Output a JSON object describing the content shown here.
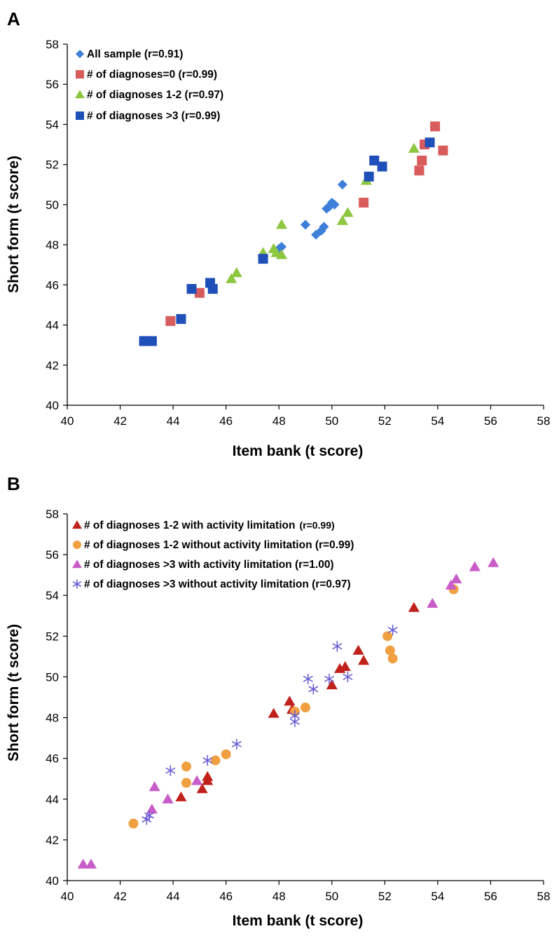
{
  "chart_data": [
    {
      "type": "scatter",
      "panel": "A",
      "xlabel": "Item bank (t score)",
      "ylabel": "Short form (t score)",
      "xlim": [
        40,
        58
      ],
      "ylim": [
        40,
        58
      ],
      "xticks": [
        40,
        42,
        44,
        46,
        48,
        50,
        52,
        54,
        56,
        58
      ],
      "yticks": [
        40,
        42,
        44,
        46,
        48,
        50,
        52,
        54,
        56,
        58
      ],
      "grid": false,
      "legend_position": "top-left",
      "series": [
        {
          "name": "All sample (r=0.91)",
          "marker": "diamond",
          "color": "#3d7fd9",
          "points": [
            [
              48.0,
              47.8
            ],
            [
              48.1,
              47.9
            ],
            [
              49.0,
              49.0
            ],
            [
              49.4,
              48.5
            ],
            [
              49.6,
              48.7
            ],
            [
              49.7,
              48.9
            ],
            [
              49.8,
              49.8
            ],
            [
              49.9,
              49.9
            ],
            [
              50.0,
              50.1
            ],
            [
              50.1,
              50.0
            ],
            [
              50.4,
              51.0
            ]
          ]
        },
        {
          "name": "# of diagnoses=0 (r=0.99)",
          "marker": "square",
          "color": "#d95c5c",
          "points": [
            [
              43.9,
              44.2
            ],
            [
              45.0,
              45.6
            ],
            [
              51.2,
              50.1
            ],
            [
              53.3,
              51.7
            ],
            [
              53.4,
              52.2
            ],
            [
              53.5,
              53.0
            ],
            [
              53.9,
              53.9
            ],
            [
              54.2,
              52.7
            ]
          ]
        },
        {
          "name": "# of diagnoses 1-2 (r=0.97)",
          "marker": "triangle",
          "color": "#8dc63f",
          "points": [
            [
              46.2,
              46.3
            ],
            [
              46.4,
              46.6
            ],
            [
              47.4,
              47.6
            ],
            [
              47.8,
              47.8
            ],
            [
              47.9,
              47.6
            ],
            [
              48.1,
              47.5
            ],
            [
              48.1,
              49.0
            ],
            [
              50.4,
              49.2
            ],
            [
              50.6,
              49.6
            ],
            [
              51.3,
              51.2
            ],
            [
              53.1,
              52.8
            ]
          ]
        },
        {
          "name": "# of diagnoses >3 (r=0.99)",
          "marker": "square",
          "color": "#1f4fb8",
          "points": [
            [
              42.9,
              43.2
            ],
            [
              43.0,
              43.2
            ],
            [
              43.2,
              43.2
            ],
            [
              44.3,
              44.3
            ],
            [
              44.7,
              45.8
            ],
            [
              45.4,
              46.1
            ],
            [
              45.5,
              45.8
            ],
            [
              47.4,
              47.3
            ],
            [
              51.4,
              51.4
            ],
            [
              51.6,
              52.2
            ],
            [
              51.9,
              51.9
            ],
            [
              53.7,
              53.1
            ]
          ]
        }
      ]
    },
    {
      "type": "scatter",
      "panel": "B",
      "xlabel": "Item bank (t score)",
      "ylabel": "Short form (t score)",
      "xlim": [
        40,
        58
      ],
      "ylim": [
        40,
        58
      ],
      "xticks": [
        40,
        42,
        44,
        46,
        48,
        50,
        52,
        54,
        56,
        58
      ],
      "yticks": [
        40,
        42,
        44,
        46,
        48,
        50,
        52,
        54,
        56,
        58
      ],
      "grid": false,
      "legend_position": "top-left",
      "series": [
        {
          "name": "# of diagnoses 1-2 with activity limitation",
          "r_label": "(r=0.99)",
          "marker": "triangle",
          "color": "#c0221b",
          "points": [
            [
              44.3,
              44.1
            ],
            [
              45.1,
              44.5
            ],
            [
              45.3,
              44.9
            ],
            [
              45.3,
              45.1
            ],
            [
              47.8,
              48.2
            ],
            [
              48.4,
              48.8
            ],
            [
              48.5,
              48.4
            ],
            [
              50.0,
              49.6
            ],
            [
              50.3,
              50.4
            ],
            [
              50.5,
              50.5
            ],
            [
              51.0,
              51.3
            ],
            [
              51.2,
              50.8
            ],
            [
              53.1,
              53.4
            ]
          ]
        },
        {
          "name": "# of diagnoses 1-2 without activity limitation (r=0.99)",
          "marker": "circle",
          "color": "#f0a040",
          "points": [
            [
              42.5,
              42.8
            ],
            [
              44.5,
              44.8
            ],
            [
              44.5,
              45.6
            ],
            [
              45.6,
              45.9
            ],
            [
              46.0,
              46.2
            ],
            [
              48.6,
              48.3
            ],
            [
              49.0,
              48.5
            ],
            [
              52.1,
              52.0
            ],
            [
              52.2,
              51.3
            ],
            [
              52.3,
              50.9
            ],
            [
              54.6,
              54.3
            ]
          ]
        },
        {
          "name": "# of diagnoses >3 with activity limitation (r=1.00)",
          "marker": "triangle",
          "color": "#c85cc8",
          "points": [
            [
              40.6,
              40.8
            ],
            [
              40.9,
              40.8
            ],
            [
              43.2,
              43.5
            ],
            [
              43.3,
              44.6
            ],
            [
              43.8,
              44.0
            ],
            [
              44.9,
              44.9
            ],
            [
              53.8,
              53.6
            ],
            [
              54.5,
              54.5
            ],
            [
              54.7,
              54.8
            ],
            [
              55.4,
              55.4
            ],
            [
              56.1,
              55.6
            ]
          ]
        },
        {
          "name": "# of diagnoses >3 without activity limitation (r=0.97)",
          "marker": "asterisk",
          "color": "#6a5fd6",
          "points": [
            [
              43.0,
              43.0
            ],
            [
              43.1,
              43.2
            ],
            [
              43.9,
              45.4
            ],
            [
              45.3,
              45.9
            ],
            [
              46.4,
              46.7
            ],
            [
              48.6,
              48.1
            ],
            [
              48.6,
              47.8
            ],
            [
              49.1,
              49.9
            ],
            [
              49.3,
              49.4
            ],
            [
              49.9,
              49.9
            ],
            [
              50.2,
              51.5
            ],
            [
              50.6,
              50.0
            ],
            [
              52.3,
              52.3
            ]
          ]
        }
      ]
    }
  ],
  "panels": {
    "a": {
      "letter": "A"
    },
    "b": {
      "letter": "B"
    }
  }
}
